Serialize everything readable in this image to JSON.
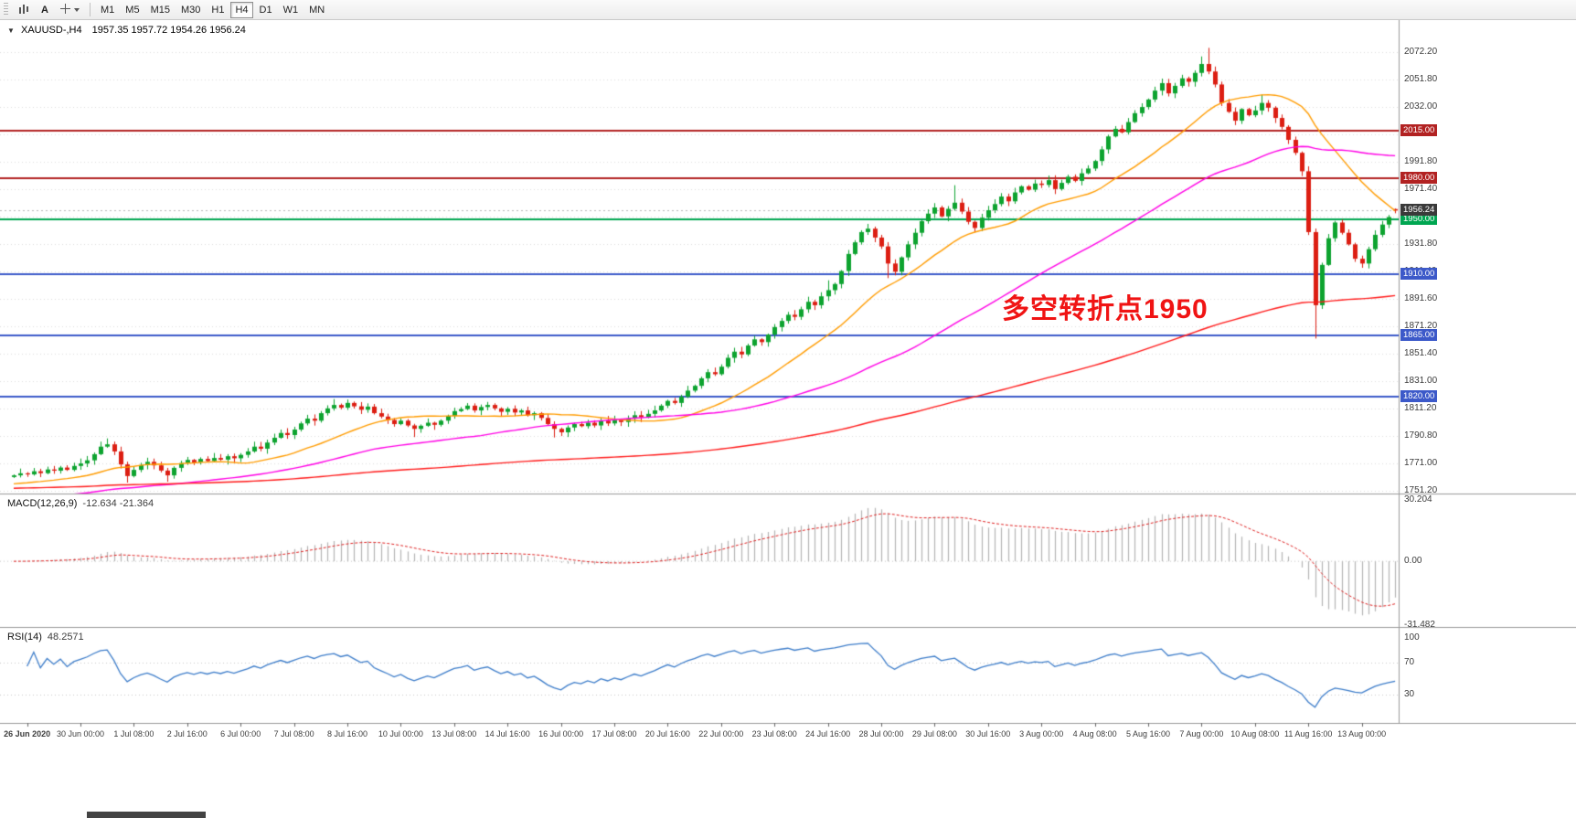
{
  "toolbar": {
    "left_buttons": [
      {
        "name": "charts-icon",
        "label": ""
      },
      {
        "name": "text-tool",
        "label": "A"
      },
      {
        "name": "crosshair-tool",
        "label": ""
      }
    ],
    "timeframes": [
      "M1",
      "M5",
      "M15",
      "M30",
      "H1",
      "H4",
      "D1",
      "W1",
      "MN"
    ],
    "active_timeframe": "H4"
  },
  "chart": {
    "symbol_period": "XAUUSD-,H4",
    "ohlc_text": "1957.35 1957.72 1954.26 1956.24",
    "collapse_icon": "▼"
  },
  "annotation": {
    "text": "多空转折点1950",
    "color": "#f01414"
  },
  "current_price": {
    "label": "1956.24",
    "value": 1956.24,
    "badge_color": "#3a3a3a"
  },
  "levels": [
    {
      "price": 2015.0,
      "label": "2015.00",
      "color": "#b22222"
    },
    {
      "price": 1980.0,
      "label": "1980.00",
      "color": "#b22222"
    },
    {
      "price": 1950.0,
      "label": "1950.00",
      "color": "#00a651"
    },
    {
      "price": 1910.0,
      "label": "1910.00",
      "color": "#3c59c9"
    },
    {
      "price": 1865.0,
      "label": "1865.00",
      "color": "#3c59c9"
    },
    {
      "price": 1820.0,
      "label": "1820.00",
      "color": "#3c59c9"
    }
  ],
  "price_axis_labels": [
    "2072.20",
    "2051.80",
    "2032.00",
    "2012.20",
    "1991.80",
    "1971.40",
    "1951.00",
    "1931.80",
    "1911.40",
    "1891.60",
    "1871.20",
    "1851.40",
    "1831.00",
    "1811.20",
    "1790.80",
    "1771.00",
    "1751.20"
  ],
  "time_axis": {
    "first_index": 2,
    "step": 8,
    "labels": [
      "26 Jun 2020",
      "30 Jun 00:00",
      "1 Jul 08:00",
      "2 Jul 16:00",
      "6 Jul 00:00",
      "7 Jul 08:00",
      "8 Jul 16:00",
      "10 Jul 00:00",
      "13 Jul 08:00",
      "14 Jul 16:00",
      "16 Jul 00:00",
      "17 Jul 08:00",
      "20 Jul 16:00",
      "22 Jul 00:00",
      "23 Jul 08:00",
      "24 Jul 16:00",
      "28 Jul 00:00",
      "29 Jul 08:00",
      "30 Jul 16:00",
      "3 Aug 00:00",
      "4 Aug 08:00",
      "5 Aug 16:00",
      "7 Aug 00:00",
      "10 Aug 08:00",
      "11 Aug 16:00",
      "13 Aug 00:00"
    ]
  },
  "chart_data": {
    "type": "candlestick",
    "symbol": "XAUUSD-",
    "period": "H4",
    "title": "XAUUSD-,H4 1957.35 1957.72 1954.26 1956.24",
    "candle_count": 208,
    "bull_color": "#0da32f",
    "bear_color": "#dc1e12",
    "closes": [
      1762.5,
      1764.0,
      1763.2,
      1765.5,
      1764.1,
      1766.8,
      1765.9,
      1768.2,
      1766.5,
      1769.4,
      1771.2,
      1773.5,
      1778.0,
      1783.5,
      1785.2,
      1780.0,
      1770.5,
      1762.0,
      1766.5,
      1770.0,
      1772.4,
      1769.8,
      1766.0,
      1762.5,
      1768.0,
      1771.5,
      1773.8,
      1772.0,
      1774.5,
      1773.0,
      1775.2,
      1774.0,
      1776.5,
      1775.0,
      1777.5,
      1780.0,
      1783.5,
      1782.0,
      1786.5,
      1790.0,
      1793.5,
      1792.0,
      1796.0,
      1800.5,
      1804.0,
      1802.5,
      1808.0,
      1811.5,
      1814.0,
      1812.0,
      1815.5,
      1813.0,
      1810.5,
      1812.8,
      1808.0,
      1805.5,
      1803.0,
      1800.0,
      1802.5,
      1799.0,
      1796.5,
      1798.8,
      1801.0,
      1799.5,
      1802.5,
      1806.0,
      1809.5,
      1811.0,
      1813.5,
      1810.0,
      1812.5,
      1814.0,
      1811.5,
      1809.0,
      1811.2,
      1808.5,
      1810.0,
      1806.5,
      1808.0,
      1804.5,
      1800.0,
      1796.5,
      1794.0,
      1797.5,
      1800.0,
      1798.5,
      1801.0,
      1799.0,
      1802.5,
      1800.5,
      1803.0,
      1801.5,
      1804.0,
      1806.5,
      1805.0,
      1807.5,
      1810.0,
      1813.5,
      1817.0,
      1815.5,
      1820.0,
      1824.5,
      1828.0,
      1833.5,
      1838.0,
      1836.5,
      1842.0,
      1848.5,
      1853.0,
      1851.0,
      1857.5,
      1862.0,
      1860.0,
      1865.5,
      1871.0,
      1875.5,
      1880.0,
      1878.5,
      1884.0,
      1889.5,
      1887.0,
      1893.5,
      1898.0,
      1902.5,
      1912.0,
      1924.5,
      1933.0,
      1940.5,
      1943.0,
      1936.5,
      1930.0,
      1917.5,
      1911.5,
      1922.0,
      1931.5,
      1940.0,
      1948.5,
      1954.0,
      1958.5,
      1952.0,
      1957.5,
      1962.0,
      1955.5,
      1948.0,
      1943.5,
      1951.0,
      1956.5,
      1961.0,
      1966.5,
      1963.0,
      1969.5,
      1974.0,
      1971.5,
      1976.0,
      1975.0,
      1978.5,
      1972.0,
      1976.5,
      1981.0,
      1978.0,
      1983.5,
      1987.0,
      1992.5,
      2001.0,
      2010.5,
      2016.0,
      2013.5,
      2021.0,
      2027.5,
      2032.0,
      2037.5,
      2044.0,
      2049.5,
      2042.0,
      2047.5,
      2053.0,
      2050.5,
      2057.0,
      2063.5,
      2058.0,
      2048.5,
      2035.0,
      2028.5,
      2022.0,
      2030.5,
      2026.0,
      2029.5,
      2035.0,
      2031.5,
      2024.0,
      2017.5,
      2008.0,
      1998.5,
      1985.0,
      1940.5,
      1887.0,
      1916.5,
      1936.0,
      1947.5,
      1940.0,
      1931.5,
      1921.0,
      1917.5,
      1928.0,
      1938.5,
      1946.0,
      1951.5,
      1956.24
    ],
    "special_wicks": {
      "14": [
        1789.5,
        null
      ],
      "17": [
        null,
        1757.2
      ],
      "23": [
        null,
        1757.8
      ],
      "48": [
        1818.3,
        null
      ],
      "50": [
        1818.0,
        null
      ],
      "60": [
        null,
        1790.5
      ],
      "81": [
        null,
        1790.2
      ],
      "122": [
        1905.2,
        null
      ],
      "128": [
        1946.5,
        null
      ],
      "131": [
        null,
        1906.8
      ],
      "141": [
        1974.8,
        null
      ],
      "178": [
        2069.0,
        null
      ],
      "179": [
        2075.3,
        null
      ],
      "187": [
        2041.0,
        null
      ],
      "195": [
        null,
        1862.6
      ]
    },
    "last_candle_ohlc": [
      1957.35,
      1957.72,
      1954.26,
      1956.24
    ],
    "moving_averages": [
      {
        "name": "fast",
        "type": "sma",
        "period": 20,
        "seed": 1756,
        "color": "#ff9c00"
      },
      {
        "name": "medium",
        "type": "sma",
        "period": 55,
        "seed": 1745,
        "color": "#ff00e6"
      },
      {
        "name": "slow",
        "type": "ema",
        "k": 0.009,
        "seed": 1753,
        "color": "#ff1a1a"
      }
    ],
    "macd": {
      "label": "MACD(12,26,9)",
      "values_text": "-12.634 -21.364",
      "fast": 12,
      "slow": 26,
      "signal_period": 9,
      "histogram_color": "#b4b4b4",
      "signal_color": "#e02020",
      "scale_labels": [
        "30.204",
        "0.00",
        "-31.482"
      ]
    },
    "rsi": {
      "label": "RSI(14)",
      "value_text": "48.2571",
      "period": 14,
      "color": "#3d7dca",
      "levels": [
        70,
        30
      ],
      "scale_labels": [
        "100",
        "70",
        "30"
      ]
    }
  }
}
